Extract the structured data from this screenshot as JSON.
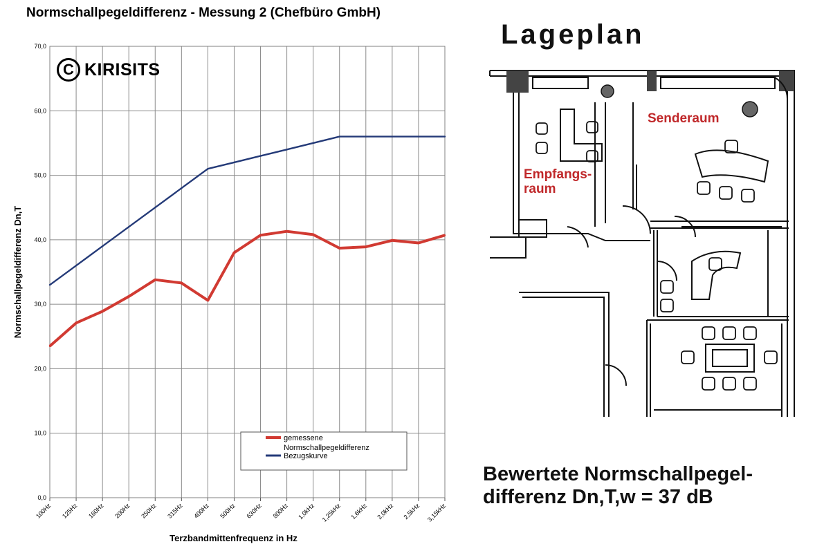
{
  "chart_data": {
    "type": "line",
    "title": "Normschallpegeldifferenz - Messung 2 (Chefbüro GmbH)",
    "xlabel": "Terzbandmittenfrequenz in Hz",
    "ylabel": "Normschallpegeldifferenz Dn,T",
    "ylim": [
      0,
      70
    ],
    "yticks": [
      "0,0",
      "10,0",
      "20,0",
      "30,0",
      "40,0",
      "50,0",
      "60,0",
      "70,0"
    ],
    "categories": [
      "100Hz",
      "125Hz",
      "160Hz",
      "200Hz",
      "250Hz",
      "315Hz",
      "400Hz",
      "500Hz",
      "630Hz",
      "800Hz",
      "1,0kHz",
      "1,25kHz",
      "1,6kHz",
      "2,0kHz",
      "2,5kHz",
      "3,15kHz"
    ],
    "series": [
      {
        "name": "gemessene Normschallpegeldifferenz",
        "color": "#d13a32",
        "values": [
          23.5,
          27.1,
          28.9,
          31.2,
          33.8,
          33.3,
          30.6,
          38.0,
          40.7,
          41.3,
          40.8,
          38.7,
          38.9,
          39.9,
          39.5,
          40.7
        ]
      },
      {
        "name": "Bezugskurve",
        "color": "#243a78",
        "values": [
          33.0,
          36.0,
          39.0,
          42.0,
          45.0,
          48.0,
          51.0,
          52.0,
          53.0,
          54.0,
          55.0,
          56.0,
          56.0,
          56.0,
          56.0,
          56.0
        ]
      }
    ],
    "legend_lines": [
      "gemessene",
      "Normschallpegeldifferenz",
      "Bezugskurve"
    ],
    "legend_position": "bottom-right",
    "grid": true
  },
  "watermark": {
    "text": "KIRISITS",
    "symbol": "C"
  },
  "plan": {
    "title": "Lageplan",
    "rooms": {
      "sender": "Senderaum",
      "empfang_line1": "Empfangs-",
      "empfang_line2": "raum"
    }
  },
  "rating": {
    "line1": "Bewertete Normschallpegel-",
    "line2": "differenz Dn,T,w = 37 dB"
  }
}
